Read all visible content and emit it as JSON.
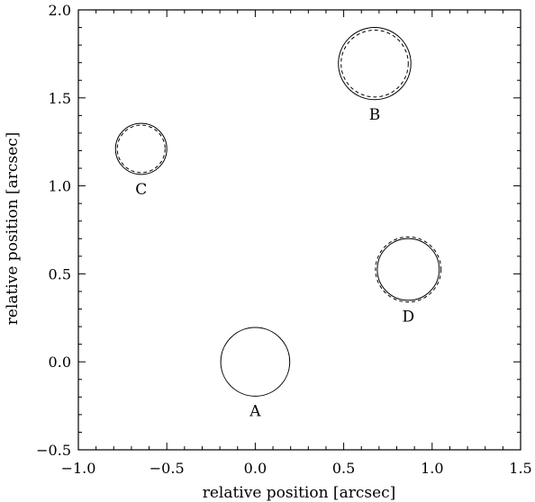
{
  "chart_data": {
    "type": "scatter",
    "title": "",
    "xlabel": "relative position [arcsec]",
    "ylabel": "relative position [arcsec]",
    "xlim": [
      -1.0,
      1.5
    ],
    "ylim": [
      -0.5,
      2.0
    ],
    "x_ticks": [
      "−1.0",
      "−0.5",
      "0.0",
      "0.5",
      "1.0",
      "1.5"
    ],
    "y_ticks": [
      "−0.5",
      "0.0",
      "0.5",
      "1.0",
      "1.5",
      "2.0"
    ],
    "grid": false,
    "points": [
      {
        "label": "A",
        "x": 0.0,
        "y": 0.0,
        "r_solid": 0.195,
        "r_dashed": null
      },
      {
        "label": "B",
        "x": 0.675,
        "y": 1.695,
        "r_solid": 0.205,
        "r_dashed": 0.19
      },
      {
        "label": "C",
        "x": -0.645,
        "y": 1.21,
        "r_solid": 0.145,
        "r_dashed": 0.135
      },
      {
        "label": "D",
        "x": 0.865,
        "y": 0.525,
        "r_solid": 0.175,
        "r_dashed": 0.185
      }
    ]
  }
}
